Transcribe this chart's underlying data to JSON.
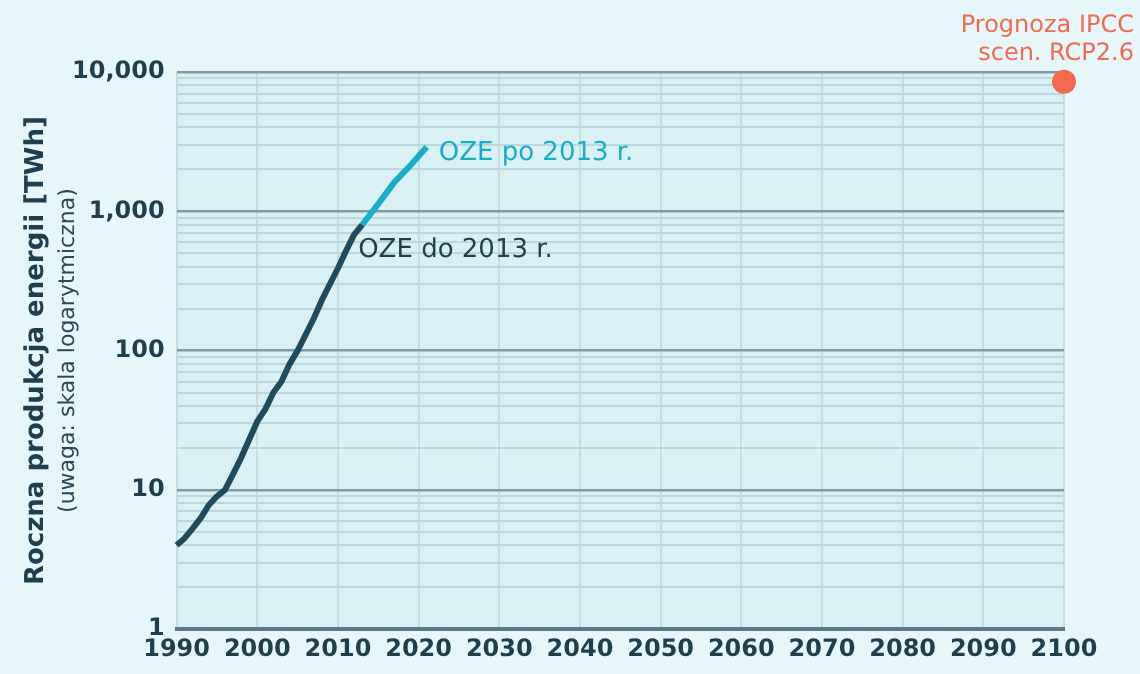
{
  "chart_data": {
    "type": "line",
    "ylabel": "Roczna produkcja energii [TWh]",
    "annotations": [
      "(uwaga: skala logarytmiczna)"
    ],
    "log": "y",
    "grid": true,
    "legend": false,
    "marker": "none",
    "line_style": "solid",
    "xlim": [
      1990,
      2100
    ],
    "xticks": [
      1990,
      2000,
      2010,
      2020,
      2030,
      2040,
      2050,
      2060,
      2070,
      2080,
      2090,
      2100
    ],
    "ylim": [
      1,
      10000
    ],
    "yticks": [
      1,
      {
        "value": 2,
        "label": null
      },
      {
        "value": 3,
        "label": null
      },
      {
        "value": 4,
        "label": null
      },
      {
        "value": 5,
        "label": null
      },
      {
        "value": 6,
        "label": null
      },
      {
        "value": 7,
        "label": null
      },
      {
        "value": 8,
        "label": null
      },
      {
        "value": 9,
        "label": null
      },
      10,
      {
        "value": 20,
        "label": null
      },
      {
        "value": 30,
        "label": null
      },
      {
        "value": 40,
        "label": null
      },
      {
        "value": 50,
        "label": null
      },
      {
        "value": 60,
        "label": null
      },
      {
        "value": 70,
        "label": null
      },
      {
        "value": 80,
        "label": null
      },
      {
        "value": 90,
        "label": null
      },
      100,
      {
        "value": 200,
        "label": null
      },
      {
        "value": 300,
        "label": null
      },
      {
        "value": 400,
        "label": null
      },
      {
        "value": 500,
        "label": null
      },
      {
        "value": 600,
        "label": null
      },
      {
        "value": 700,
        "label": null
      },
      {
        "value": 800,
        "label": null
      },
      {
        "value": 900,
        "label": null
      },
      {
        "value": 1000,
        "label": "1,000"
      },
      {
        "value": 2000,
        "label": null
      },
      {
        "value": 3000,
        "label": null
      },
      {
        "value": 4000,
        "label": null
      },
      {
        "value": 5000,
        "label": null
      },
      {
        "value": 6000,
        "label": null
      },
      {
        "value": 7000,
        "label": null
      },
      {
        "value": 8000,
        "label": null
      },
      {
        "value": 9000,
        "label": null
      },
      {
        "value": 10000,
        "label": "10,000"
      }
    ],
    "series": [
      {
        "name": "OZE do 2013 r.",
        "color": "#1f4b5c",
        "x": [
          1990,
          1991,
          1992,
          1993,
          1994,
          1995,
          1996,
          1997,
          1998,
          1999,
          2000,
          2001,
          2002,
          2003,
          2004,
          2005,
          2006,
          2007,
          2008,
          2009,
          2010,
          2011,
          2012,
          2013
        ],
        "values": [
          4,
          4.5,
          5.3,
          6.3,
          7.8,
          9,
          10,
          13,
          17,
          23,
          31,
          38,
          50,
          60,
          80,
          100,
          130,
          170,
          230,
          300,
          390,
          520,
          680,
          800
        ]
      },
      {
        "name": "OZE po 2013 r.",
        "color": "#1aaec6",
        "x": [
          2013,
          2015,
          2017,
          2019,
          2021
        ],
        "values": [
          800,
          1130,
          1620,
          2140,
          2890
        ]
      },
      {
        "name": "Prognoza IPCC\nscen. RCP2.6",
        "type": "scatter",
        "marker": "circle",
        "color": "#f26a50",
        "x": [
          2100
        ],
        "values": [
          8500
        ]
      }
    ]
  }
}
